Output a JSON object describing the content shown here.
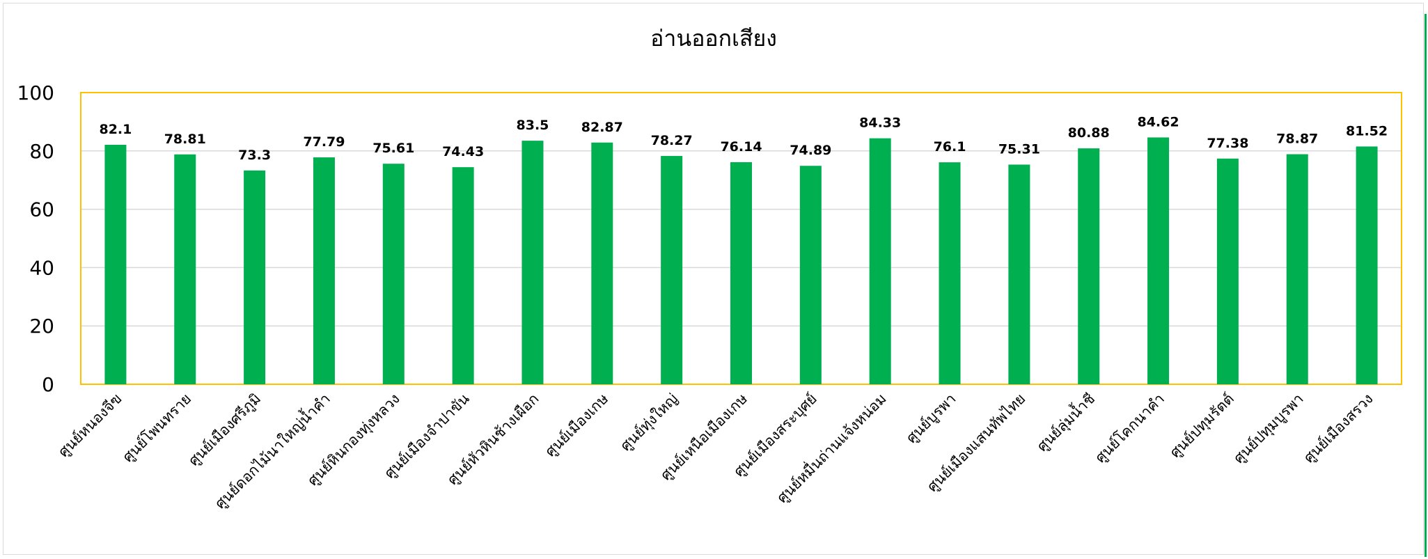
{
  "chart_data": {
    "type": "bar",
    "title": "อ่านออกเสียง",
    "xlabel": "",
    "ylabel": "",
    "ylim": [
      0,
      100
    ],
    "yticks": [
      0,
      20,
      40,
      60,
      80,
      100
    ],
    "grid": true,
    "legend": "none",
    "bar_color": "#00b050",
    "plot_border_color": "#ffc000",
    "grid_color": "#d9d9d9",
    "categories": [
      "ศูนย์หนองจีฃ",
      "ศูนย์โพนทราย",
      "ศูนย์เมืองศรีภูมิ",
      "ศูนย์ดอกไม้นาใหญ่น้ำคำ",
      "ศูนย์หินกองทุ่งหลวง",
      "ศูนย์เมืองจำปาขัน",
      "ศูนย์หัวหินช้างเผือก",
      "ศูนย์เมืองเกษ",
      "ศูนย์ทุ่งใหญ่",
      "ศูนย์เหนือเมืองเกษ",
      "ศูนย์เมืองสระบุศย์",
      "ศูนย์หมื่นถ่านแจ้งหน่อม",
      "ศูนย์บูรพา",
      "ศูนย์เมืองแสนทัพไทย",
      "ศูนย์ลุ่มน้ำชี",
      "ศูนย์โคกนาคำ",
      "ศูนย์ปทุมรัตต์",
      "ศูนย์ปทุมบูรพา",
      "ศูนย์เมืองสรวง"
    ],
    "value_labels": [
      "82.1",
      "78.81",
      "73.3",
      "77.79",
      "75.61",
      "74.43",
      "83.5",
      "82.87",
      "78.27",
      "76.14",
      "74.89",
      "84.33",
      "76.1",
      "75.31",
      "80.88",
      "84.62",
      "77.38",
      "78.87",
      "81.52"
    ],
    "values": [
      82.1,
      78.81,
      73.3,
      77.79,
      75.61,
      74.43,
      83.5,
      82.87,
      78.27,
      76.14,
      74.89,
      84.33,
      76.1,
      75.31,
      80.88,
      84.62,
      77.38,
      78.87,
      81.52
    ]
  }
}
